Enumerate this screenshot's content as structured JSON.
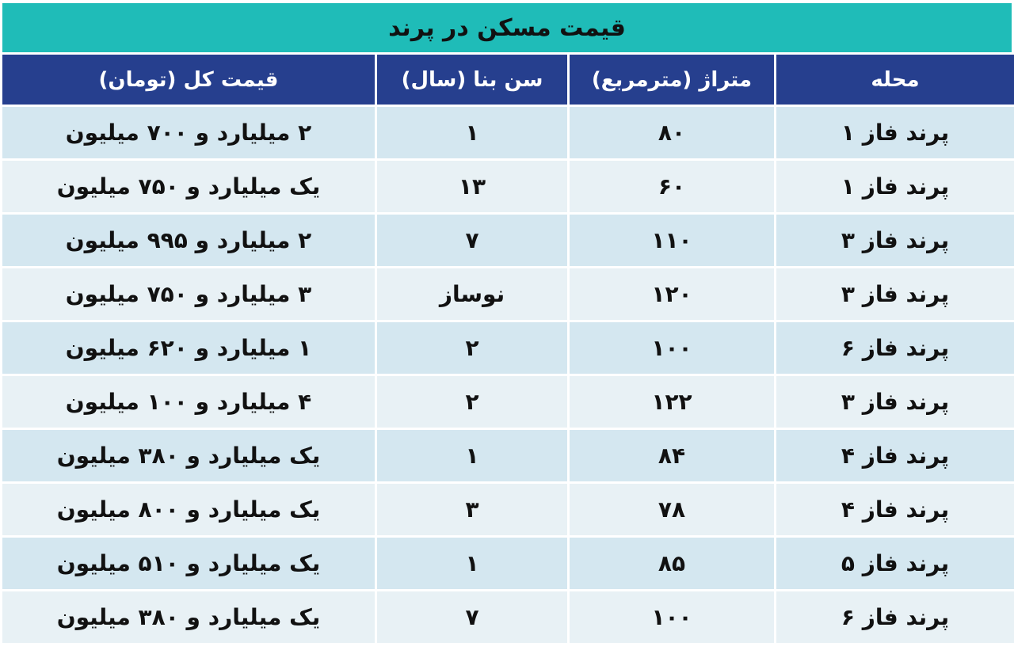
{
  "title": "قیمت مسکن در پرند",
  "colors": {
    "title_bg": "#1fbcb8",
    "header_bg": "#263f8e",
    "row_dark": "#d4e7f0",
    "row_light": "#e8f1f5"
  },
  "headers": [
    "محله",
    "متراژ (مترمربع)",
    "سن بنا (سال)",
    "قیمت کل (تومان)"
  ],
  "rows": [
    [
      "پرند فاز ۱",
      "۸۰",
      "۱",
      "۲ میلیارد و ۷۰۰ میلیون"
    ],
    [
      "پرند فاز ۱",
      "۶۰",
      "۱۳",
      "یک میلیارد و ۷۵۰ میلیون"
    ],
    [
      "پرند فاز ۳",
      "۱۱۰",
      "۷",
      "۲ میلیارد و ۹۹۵ میلیون"
    ],
    [
      "پرند فاز ۳",
      "۱۲۰",
      "نوساز",
      "۳ میلیارد و ۷۵۰ میلیون"
    ],
    [
      "پرند فاز ۶",
      "۱۰۰",
      "۲",
      "۱ میلیارد و ۶۲۰ میلیون"
    ],
    [
      "پرند فاز ۳",
      "۱۲۲",
      "۲",
      "۴ میلیارد و ۱۰۰ میلیون"
    ],
    [
      "پرند فاز ۴",
      "۸۴",
      "۱",
      "یک میلیارد و ۳۸۰ میلیون"
    ],
    [
      "پرند فاز ۴",
      "۷۸",
      "۳",
      "یک میلیارد و ۸۰۰ میلیون"
    ],
    [
      "پرند فاز ۵",
      "۸۵",
      "۱",
      "یک میلیارد و ۵۱۰ میلیون"
    ],
    [
      "پرند فاز ۶",
      "۱۰۰",
      "۷",
      "یک میلیارد و ۳۸۰ میلیون"
    ]
  ]
}
